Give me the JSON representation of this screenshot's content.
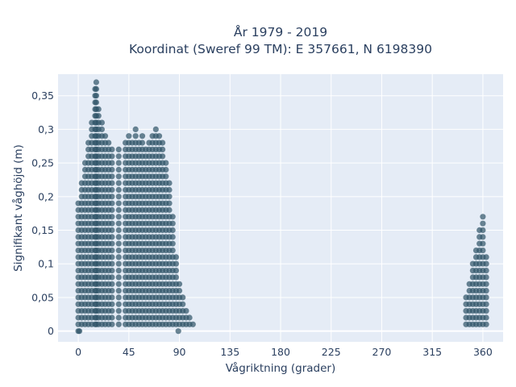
{
  "chart_data": {
    "type": "scatter",
    "title_line1": "År 1979 - 2019",
    "title_line2": "Koordinat (Sweref 99 TM): E 357661, N 6198390",
    "xlabel": "Vågriktning (grader)",
    "ylabel": "Signifikant våghöjd (m)",
    "xlim": [
      -18,
      378
    ],
    "ylim": [
      -0.016,
      0.382
    ],
    "xticks": [
      0,
      45,
      90,
      135,
      180,
      225,
      270,
      315,
      360
    ],
    "xtick_labels": [
      "0",
      "45",
      "90",
      "135",
      "180",
      "225",
      "270",
      "315",
      "360"
    ],
    "yticks": [
      0,
      0.05,
      0.1,
      0.15,
      0.2,
      0.25,
      0.3,
      0.35
    ],
    "ytick_labels": [
      "0",
      "0,05",
      "0,1",
      "0,15",
      "0,2",
      "0,25",
      "0,3",
      "0,35"
    ],
    "grid": true,
    "marker_color": "#2e5266",
    "background_color": "#e5ecf6",
    "y_step": 0.01,
    "clusters": [
      {
        "name": "",
        "envelope": [
          {
            "x": 0,
            "ymax": 0.19
          },
          {
            "x": 3,
            "ymax": 0.22
          },
          {
            "x": 6,
            "ymax": 0.25
          },
          {
            "x": 9,
            "ymax": 0.28
          },
          {
            "x": 12,
            "ymax": 0.31
          },
          {
            "x": 15,
            "ymax": 0.36
          },
          {
            "x": 16,
            "ymax": 0.37
          },
          {
            "x": 18,
            "ymax": 0.33
          },
          {
            "x": 21,
            "ymax": 0.31
          },
          {
            "x": 24,
            "ymax": 0.29
          },
          {
            "x": 27,
            "ymax": 0.28
          },
          {
            "x": 30,
            "ymax": 0.27
          },
          {
            "x": 36,
            "ymax": 0.27
          },
          {
            "x": 42,
            "ymax": 0.28
          },
          {
            "x": 45,
            "ymax": 0.29
          },
          {
            "x": 48,
            "ymax": 0.28
          },
          {
            "x": 51,
            "ymax": 0.3
          },
          {
            "x": 54,
            "ymax": 0.28
          },
          {
            "x": 57,
            "ymax": 0.29
          },
          {
            "x": 60,
            "ymax": 0.27
          },
          {
            "x": 63,
            "ymax": 0.28
          },
          {
            "x": 66,
            "ymax": 0.29
          },
          {
            "x": 69,
            "ymax": 0.3
          },
          {
            "x": 72,
            "ymax": 0.29
          },
          {
            "x": 75,
            "ymax": 0.28
          },
          {
            "x": 78,
            "ymax": 0.25
          },
          {
            "x": 81,
            "ymax": 0.22
          },
          {
            "x": 84,
            "ymax": 0.17
          },
          {
            "x": 87,
            "ymax": 0.11
          },
          {
            "x": 90,
            "ymax": 0.07
          },
          {
            "x": 93,
            "ymax": 0.05
          },
          {
            "x": 96,
            "ymax": 0.03
          },
          {
            "x": 99,
            "ymax": 0.02
          },
          {
            "x": 102,
            "ymax": 0.01
          }
        ],
        "extra_points": [
          {
            "x": 0,
            "y": 0
          },
          {
            "x": 1,
            "y": 0
          },
          {
            "x": 89,
            "y": 0
          }
        ]
      },
      {
        "name": "",
        "envelope": [
          {
            "x": 345,
            "ymax": 0.05
          },
          {
            "x": 348,
            "ymax": 0.07
          },
          {
            "x": 351,
            "ymax": 0.1
          },
          {
            "x": 354,
            "ymax": 0.12
          },
          {
            "x": 357,
            "ymax": 0.15
          },
          {
            "x": 360,
            "ymax": 0.17
          },
          {
            "x": 363,
            "ymax": 0.11
          }
        ],
        "extra_points": []
      }
    ]
  }
}
